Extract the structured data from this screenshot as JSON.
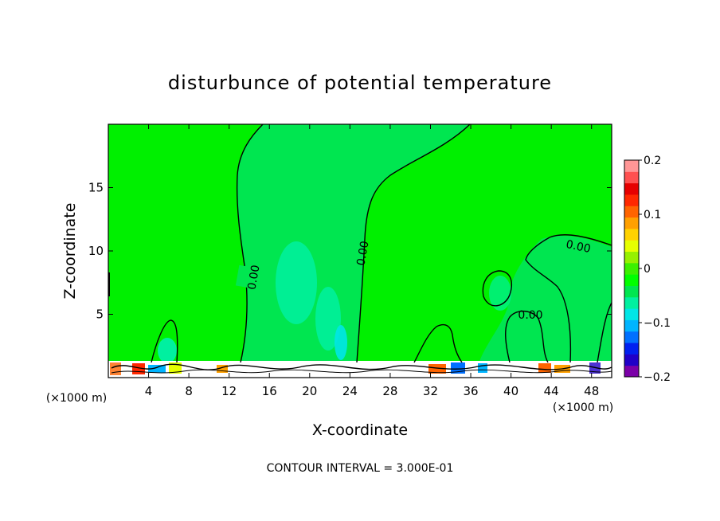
{
  "chart_data": {
    "type": "heatmap",
    "title": "disturbunce of potential temperature",
    "xlabel": "X-coordinate",
    "ylabel": "Z-coordinate",
    "x_unit": "(×1000 m)",
    "x_unit_right": "(×1000 m)",
    "xlim": [
      0,
      50
    ],
    "ylim": [
      0,
      20
    ],
    "x_ticks": [
      4,
      8,
      12,
      16,
      20,
      24,
      28,
      32,
      36,
      40,
      44,
      48
    ],
    "y_ticks": [
      5,
      10,
      15
    ],
    "contour_labels": [
      "0.00",
      "0.00",
      "0.00",
      "0.00"
    ],
    "colorbar": {
      "range": [
        -0.2,
        0.2
      ],
      "tick_labels": [
        "0.2",
        "0.1",
        "0",
        "−0.1",
        "−0.2"
      ],
      "colors": [
        "#7b00a8",
        "#2000c8",
        "#0020f0",
        "#0070ff",
        "#00b4ff",
        "#00e6e6",
        "#00f0a0",
        "#00e650",
        "#00ff00",
        "#3cf000",
        "#96f000",
        "#e6ff00",
        "#ffd200",
        "#ffa000",
        "#ff6400",
        "#ff2800",
        "#e60000",
        "#ff5050",
        "#ff9696"
      ]
    },
    "footer": "CONTOUR INTERVAL = 3.000E-01",
    "colors": {
      "background_field": "#00f000",
      "negative_region": "#00e650",
      "weak_negative": "#00f0a0",
      "surface_band": "#ffffff"
    }
  }
}
